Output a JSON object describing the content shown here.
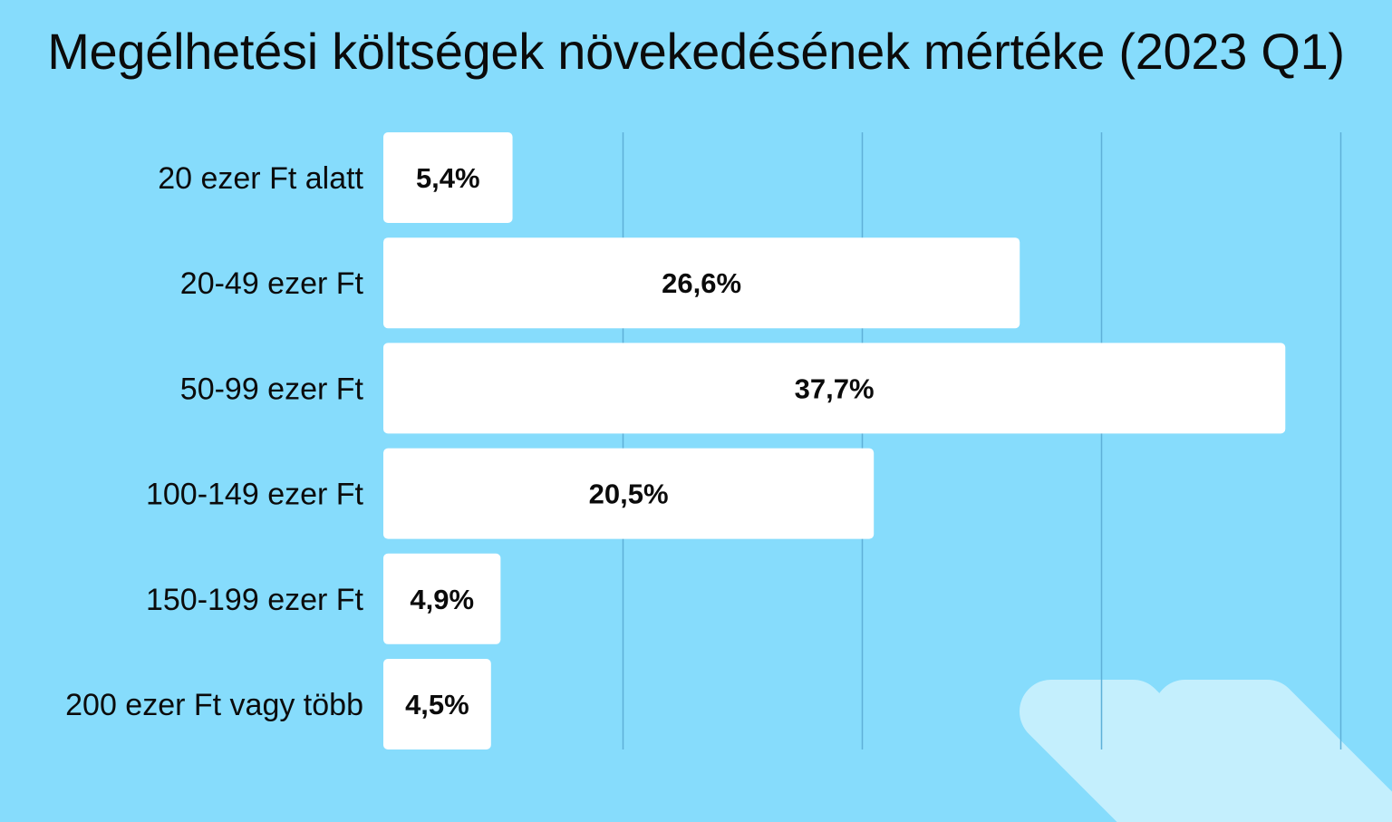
{
  "colors": {
    "background": "#86dcfc",
    "bar_fill": "#ffffff",
    "gridline": "#5fb0d8",
    "text": "#0b0b0b",
    "chevron": "#c4effd"
  },
  "decoration": {
    "icon": "double-chevron-right-icon"
  },
  "chart_data": {
    "type": "bar",
    "orientation": "horizontal",
    "title": "Megélhetési költségek növekedésének mértéke (2023 Q1)",
    "xlabel": "",
    "ylabel": "",
    "xlim": [
      0,
      40
    ],
    "grid": true,
    "legend": "none",
    "categories": [
      "20 ezer Ft alatt",
      "20-49 ezer Ft",
      "50-99 ezer Ft",
      "100-149 ezer Ft",
      "150-199 ezer Ft",
      "200 ezer Ft vagy több"
    ],
    "values": [
      5.4,
      26.6,
      37.7,
      20.5,
      4.9,
      4.5
    ],
    "value_labels": [
      "5,4%",
      "26,6%",
      "37,7%",
      "20,5%",
      "4,9%",
      "4,5%"
    ]
  }
}
